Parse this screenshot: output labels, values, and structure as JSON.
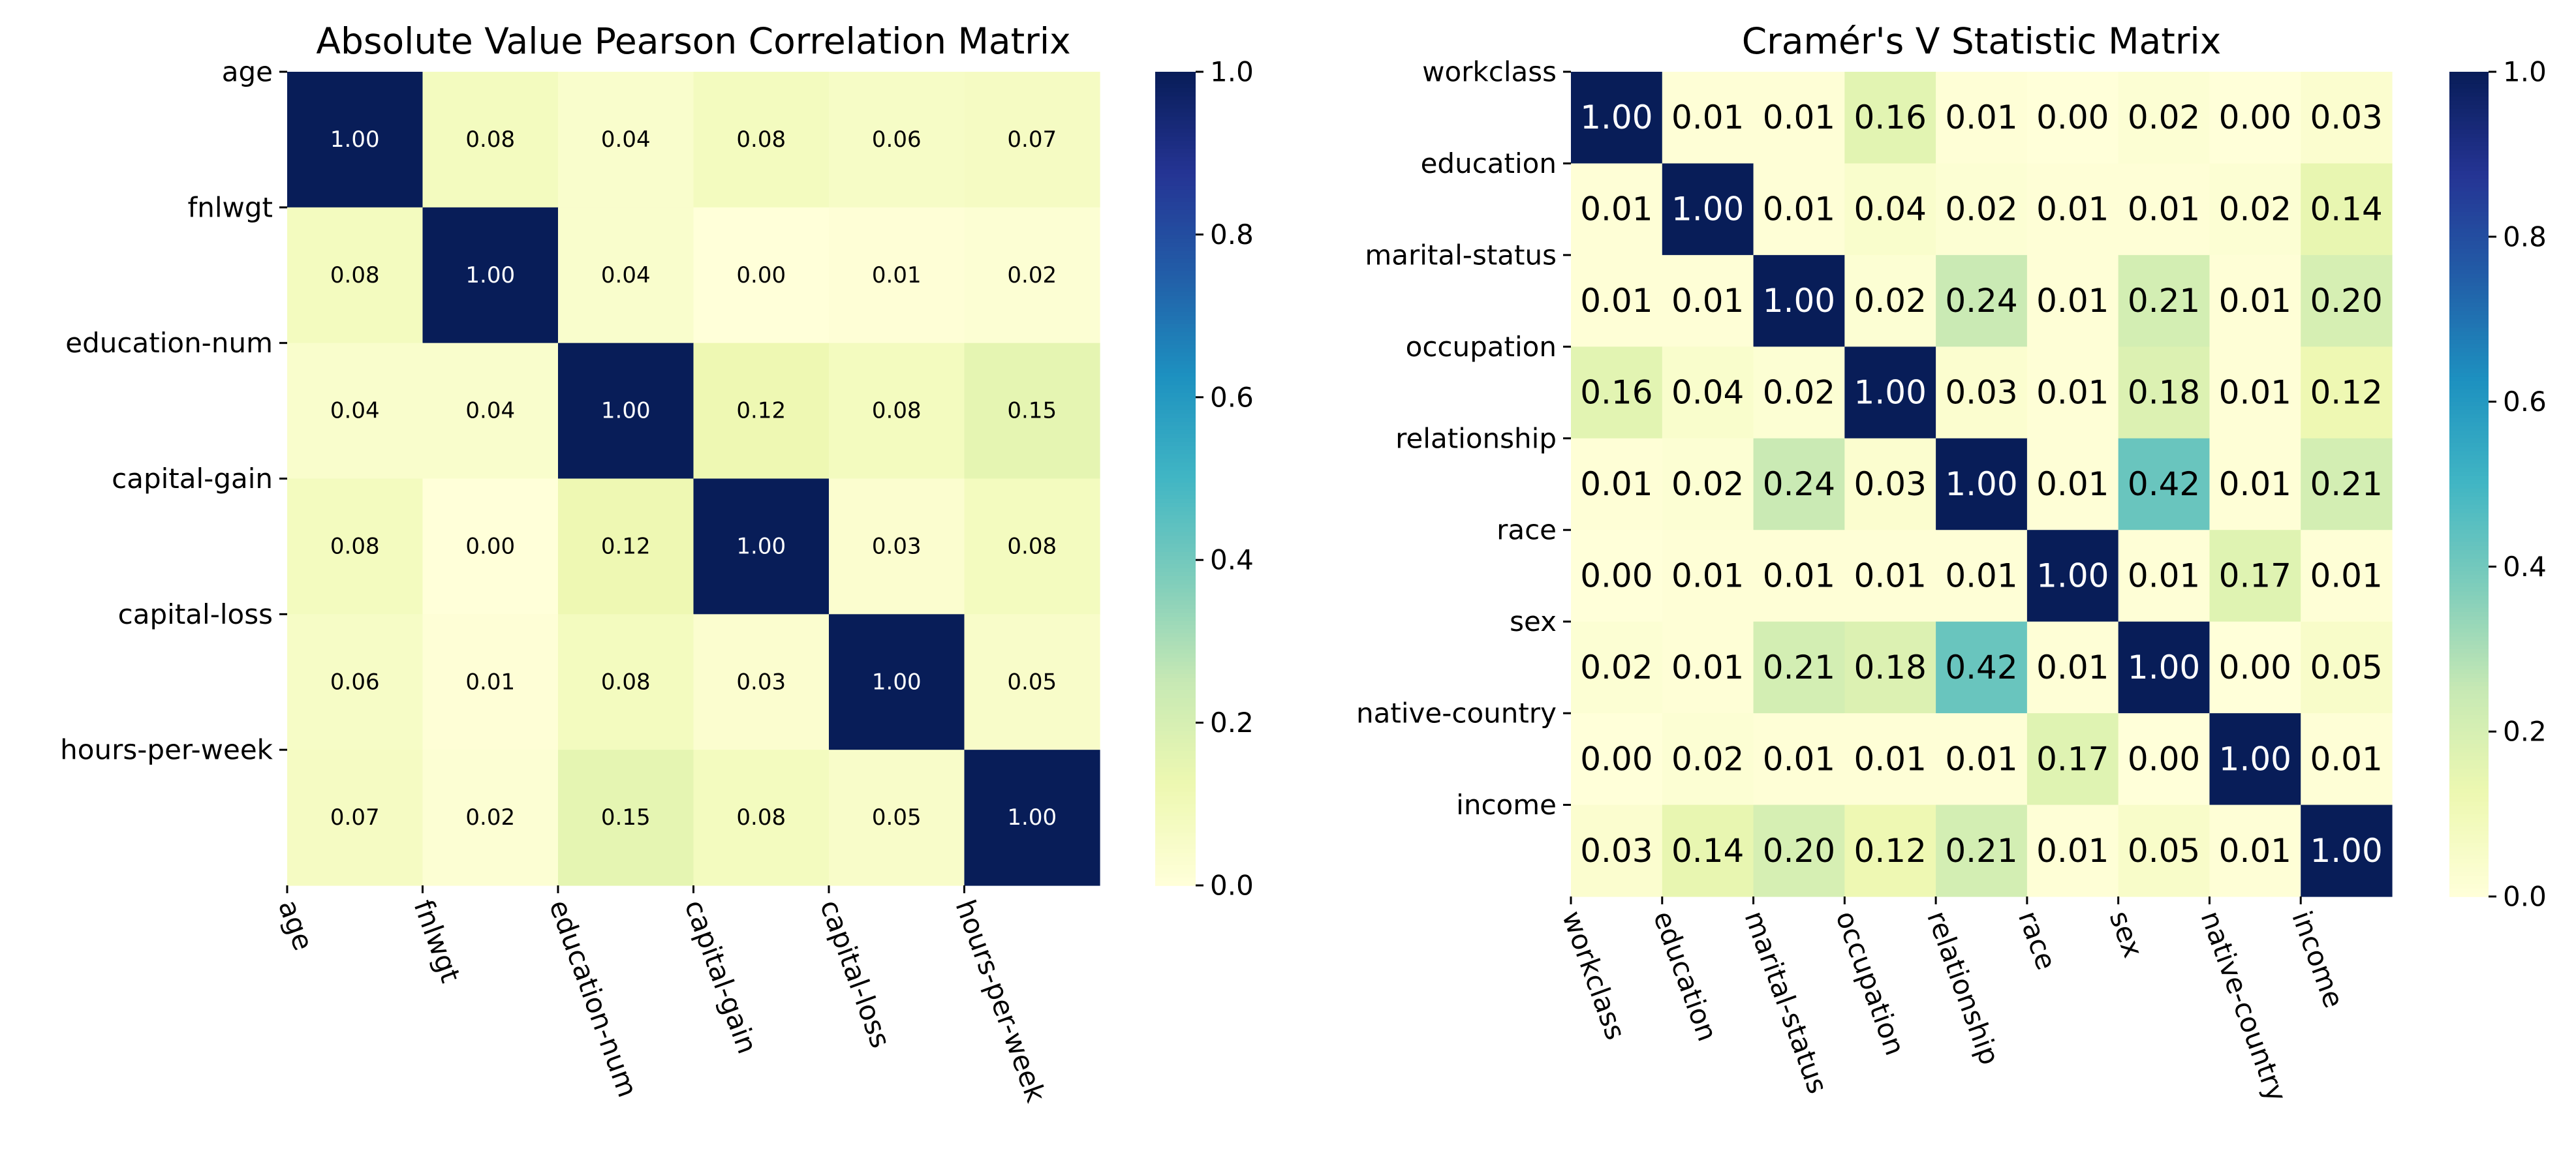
{
  "chart_data": [
    {
      "type": "heatmap",
      "title": "Absolute Value Pearson Correlation Matrix",
      "xlabel": "",
      "ylabel": "",
      "labels": [
        "age",
        "fnlwgt",
        "education-num",
        "capital-gain",
        "capital-loss",
        "hours-per-week"
      ],
      "values": [
        [
          1.0,
          0.08,
          0.04,
          0.08,
          0.06,
          0.07
        ],
        [
          0.08,
          1.0,
          0.04,
          0.0,
          0.01,
          0.02
        ],
        [
          0.04,
          0.04,
          1.0,
          0.12,
          0.08,
          0.15
        ],
        [
          0.08,
          0.0,
          0.12,
          1.0,
          0.03,
          0.08
        ],
        [
          0.06,
          0.01,
          0.08,
          0.03,
          1.0,
          0.05
        ],
        [
          0.07,
          0.02,
          0.15,
          0.08,
          0.05,
          1.0
        ]
      ],
      "vmin": 0.0,
      "vmax": 1.0,
      "colormap": "YlGnBu",
      "colorbar_ticks": [
        "0.0",
        "0.2",
        "0.4",
        "0.6",
        "0.8",
        "1.0"
      ],
      "annotation_format": "0.00"
    },
    {
      "type": "heatmap",
      "title": "Cramér's V Statistic Matrix",
      "xlabel": "",
      "ylabel": "",
      "labels": [
        "workclass",
        "education",
        "marital-status",
        "occupation",
        "relationship",
        "race",
        "sex",
        "native-country",
        "income"
      ],
      "values": [
        [
          1.0,
          0.01,
          0.01,
          0.16,
          0.01,
          0.0,
          0.02,
          0.0,
          0.03
        ],
        [
          0.01,
          1.0,
          0.01,
          0.04,
          0.02,
          0.01,
          0.01,
          0.02,
          0.14
        ],
        [
          0.01,
          0.01,
          1.0,
          0.02,
          0.24,
          0.01,
          0.21,
          0.01,
          0.2
        ],
        [
          0.16,
          0.04,
          0.02,
          1.0,
          0.03,
          0.01,
          0.18,
          0.01,
          0.12
        ],
        [
          0.01,
          0.02,
          0.24,
          0.03,
          1.0,
          0.01,
          0.42,
          0.01,
          0.21
        ],
        [
          0.0,
          0.01,
          0.01,
          0.01,
          0.01,
          1.0,
          0.01,
          0.17,
          0.01
        ],
        [
          0.02,
          0.01,
          0.21,
          0.18,
          0.42,
          0.01,
          1.0,
          0.0,
          0.05
        ],
        [
          0.0,
          0.02,
          0.01,
          0.01,
          0.01,
          0.17,
          0.0,
          1.0,
          0.01
        ],
        [
          0.03,
          0.14,
          0.2,
          0.12,
          0.21,
          0.01,
          0.05,
          0.01,
          1.0
        ]
      ],
      "vmin": 0.0,
      "vmax": 1.0,
      "colormap": "YlGnBu",
      "colorbar_ticks": [
        "0.0",
        "0.2",
        "0.4",
        "0.6",
        "0.8",
        "1.0"
      ],
      "annotation_format": "0.00"
    }
  ]
}
